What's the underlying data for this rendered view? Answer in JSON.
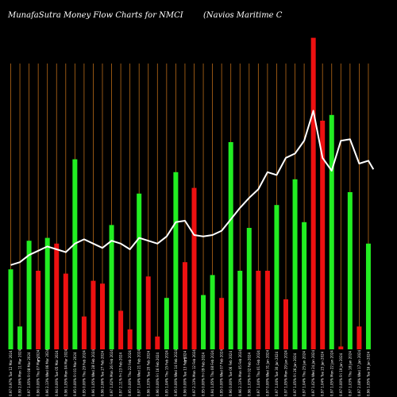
{
  "chart_data": {
    "type": "bar",
    "title": "MunafaSutra  Money Flow  Charts for NMCI",
    "subtitle": "(Navios Maritime    C",
    "annotations": [
      "C",
      "C"
    ],
    "categories": [
      "Tue 12 Mar 2024",
      "Mon 11 Mar 2024",
      "Fri 08 Mar 2024",
      "Thu 07 Mar 2024",
      "Wed 06 Mar 2024",
      "Tue 05 Mar 2024",
      "Mon 04 Mar 2024",
      "Fri 01 Mar 2024",
      "Thu 29 Feb 2024",
      "Wed 28 Feb 2024",
      "Tue 27 Feb 2024",
      "Mon 26 Feb 2024",
      "Fri 23 Feb 2024",
      "Thu 22 Feb 2024",
      "Wed 21 Feb 2024",
      "Tue 20 Feb 2024",
      "Fri 16 Feb 2024",
      "Thu 15 Feb 2024",
      "Wed 14 Feb 2024",
      "Tue 13 Feb 2024",
      "Mon 12 Feb 2024",
      "Fri 09 Feb 2024",
      "Thu 08 Feb 2024",
      "Wed 07 Feb 2024",
      "Tue 06 Feb 2024",
      "Mon 05 Feb 2024",
      "Fri 02 Feb 2024",
      "Thu 01 Feb 2024",
      "Wed 31 Jan 2024",
      "Tue 30 Jan 2024",
      "Mon 29 Jan 2024",
      "Fri 26 Jan 2024",
      "Thu 25 Jan 2024",
      "Wed 24 Jan 2024",
      "Tue 23 Jan 2024",
      "Mon 22 Jan 2024",
      "Fri 19 Jan 2024",
      "Thu 18 Jan 2024",
      "Wed 17 Jan 2024",
      "Tue 16 Jan 2024"
    ],
    "xtick_labels": [
      "0.97 0.97%",
      "0.99 2.06%",
      "0.97 1.05%",
      "0.96 0.00%",
      "0.96 2.13%",
      "0.94 0.00%",
      "0.96 1.05%",
      "0.95 0.00%",
      "0.95 0.00%",
      "0.96 1.05%",
      "0.96 2.06%",
      "0.97 1.02%",
      "0.97 2.11%",
      "0.95 0.00%",
      "0.97 1.04%",
      "0.96 1.03%",
      "0.96 0.00%",
      "0.95 1.04%",
      "0.95 0.00%",
      "0.96 0.00%",
      "0.97 2.13%",
      "0.95 0.00%",
      "0.94 1.05%",
      "0.95 0.00%",
      "0.96 0.00%",
      "0.96 2.13%",
      "0.96 1.03%",
      "0.97 1.04%",
      "0.97 0.00%",
      "0.97 1.04%",
      "0.97 1.05%",
      "0.97 1.05%",
      "0.97 1.04%",
      "0.97 1.02%",
      "0.97 1.04%",
      "0.97 1.05%",
      "0.97 0.00%",
      "0.97 1.03%",
      "0.97 2.08%",
      "0.96 1.05%"
    ],
    "flow_direction": [
      "green",
      "green",
      "green",
      "red",
      "green",
      "red",
      "red",
      "green",
      "red",
      "red",
      "red",
      "green",
      "red",
      "red",
      "green",
      "red",
      "red",
      "green",
      "green",
      "red",
      "red",
      "green",
      "green",
      "red",
      "green",
      "green",
      "green",
      "red",
      "red",
      "green",
      "red",
      "green",
      "green",
      "red",
      "red",
      "green",
      "red",
      "green",
      "red",
      "green"
    ],
    "money_flow": [
      2.8,
      0.8,
      3.8,
      2.75,
      3.9,
      3.7,
      2.65,
      6.65,
      1.15,
      2.4,
      2.3,
      4.35,
      1.35,
      0.7,
      5.45,
      2.55,
      0.45,
      1.8,
      6.2,
      3.05,
      5.65,
      1.9,
      2.6,
      1.8,
      7.25,
      2.75,
      4.25,
      2.75,
      2.75,
      5.05,
      1.75,
      5.95,
      4.45,
      10.9,
      8.0,
      8.2,
      0.1,
      5.5,
      0.8,
      3.7
    ],
    "price_line": [
      2.95,
      3.05,
      3.3,
      3.45,
      3.6,
      3.5,
      3.4,
      3.7,
      3.85,
      3.7,
      3.55,
      3.8,
      3.7,
      3.5,
      3.9,
      3.8,
      3.7,
      3.95,
      4.45,
      4.5,
      4.0,
      3.95,
      4.0,
      4.15,
      4.55,
      4.95,
      5.3,
      5.6,
      6.2,
      6.1,
      6.7,
      6.85,
      7.3,
      8.35,
      6.7,
      6.25,
      7.3,
      7.35,
      6.5,
      6.6
    ],
    "price_line_tail": 6.3,
    "ylim": [
      0,
      11
    ],
    "grid": true,
    "colors": {
      "inflow": "#22ee22",
      "outflow": "#ee1111",
      "grid": "#b86a18",
      "line": "#ffffff",
      "background": "#000000"
    }
  }
}
